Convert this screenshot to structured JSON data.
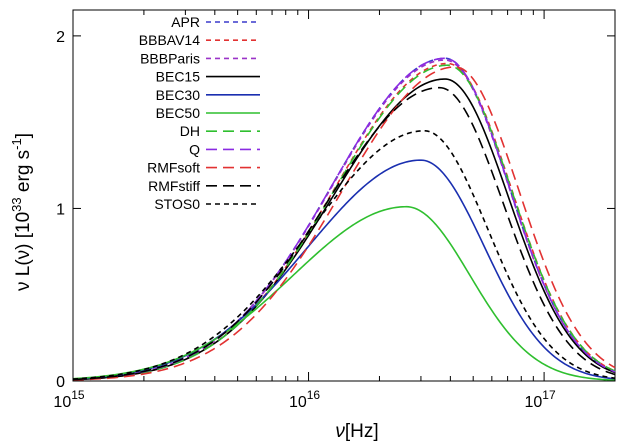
{
  "chart_data": {
    "type": "line",
    "xlabel_symbol": "ν",
    "xlabel_unit": "[Hz]",
    "ylabel_prefix": "ν L(ν) [10",
    "ylabel_exp1": "33",
    "ylabel_mid": " erg s",
    "ylabel_exp2": "-1",
    "ylabel_suffix": "]",
    "x_scale": "log",
    "xlim": [
      1000000000000000.0,
      2e+17
    ],
    "ylim": [
      0,
      2.15
    ],
    "x_ticks": [
      {
        "value": 1000000000000000.0,
        "base": "10",
        "exp": "15"
      },
      {
        "value": 1e+16,
        "base": "10",
        "exp": "16"
      },
      {
        "value": 1e+17,
        "base": "10",
        "exp": "17"
      }
    ],
    "y_ticks": [
      {
        "value": 0,
        "label": "0"
      },
      {
        "value": 1,
        "label": "1"
      },
      {
        "value": 2,
        "label": "2"
      }
    ],
    "legend_position": "top-left",
    "grid": false,
    "series": [
      {
        "name": "APR",
        "peak_x": 3.8e+16,
        "peak_y": 1.87,
        "color": "#3a3acc",
        "dash": "short"
      },
      {
        "name": "BBBAV14",
        "peak_x": 3.9e+16,
        "peak_y": 1.84,
        "color": "#e23232",
        "dash": "short"
      },
      {
        "name": "BBBParis",
        "peak_x": 3.8e+16,
        "peak_y": 1.86,
        "color": "#9b33c8",
        "dash": "short"
      },
      {
        "name": "BEC15",
        "peak_x": 3.8e+16,
        "peak_y": 1.75,
        "color": "#000000",
        "dash": "solid"
      },
      {
        "name": "BEC30",
        "peak_x": 3e+16,
        "peak_y": 1.28,
        "color": "#1a2fb0",
        "dash": "solid"
      },
      {
        "name": "BEC50",
        "peak_x": 2.6e+16,
        "peak_y": 1.01,
        "color": "#2fbf2f",
        "dash": "solid"
      },
      {
        "name": "DH",
        "peak_x": 3.9e+16,
        "peak_y": 1.83,
        "color": "#2fbf2f",
        "dash": "long"
      },
      {
        "name": "Q",
        "peak_x": 3.8e+16,
        "peak_y": 1.87,
        "color": "#8a2be2",
        "dash": "long"
      },
      {
        "name": "RMFsoft",
        "peak_x": 4.2e+16,
        "peak_y": 1.82,
        "color": "#e23232",
        "dash": "long"
      },
      {
        "name": "RMFstiff",
        "peak_x": 3.6e+16,
        "peak_y": 1.7,
        "color": "#000000",
        "dash": "long"
      },
      {
        "name": "STOS0",
        "peak_x": 3.1e+16,
        "peak_y": 1.45,
        "color": "#000000",
        "dash": "short"
      }
    ]
  }
}
